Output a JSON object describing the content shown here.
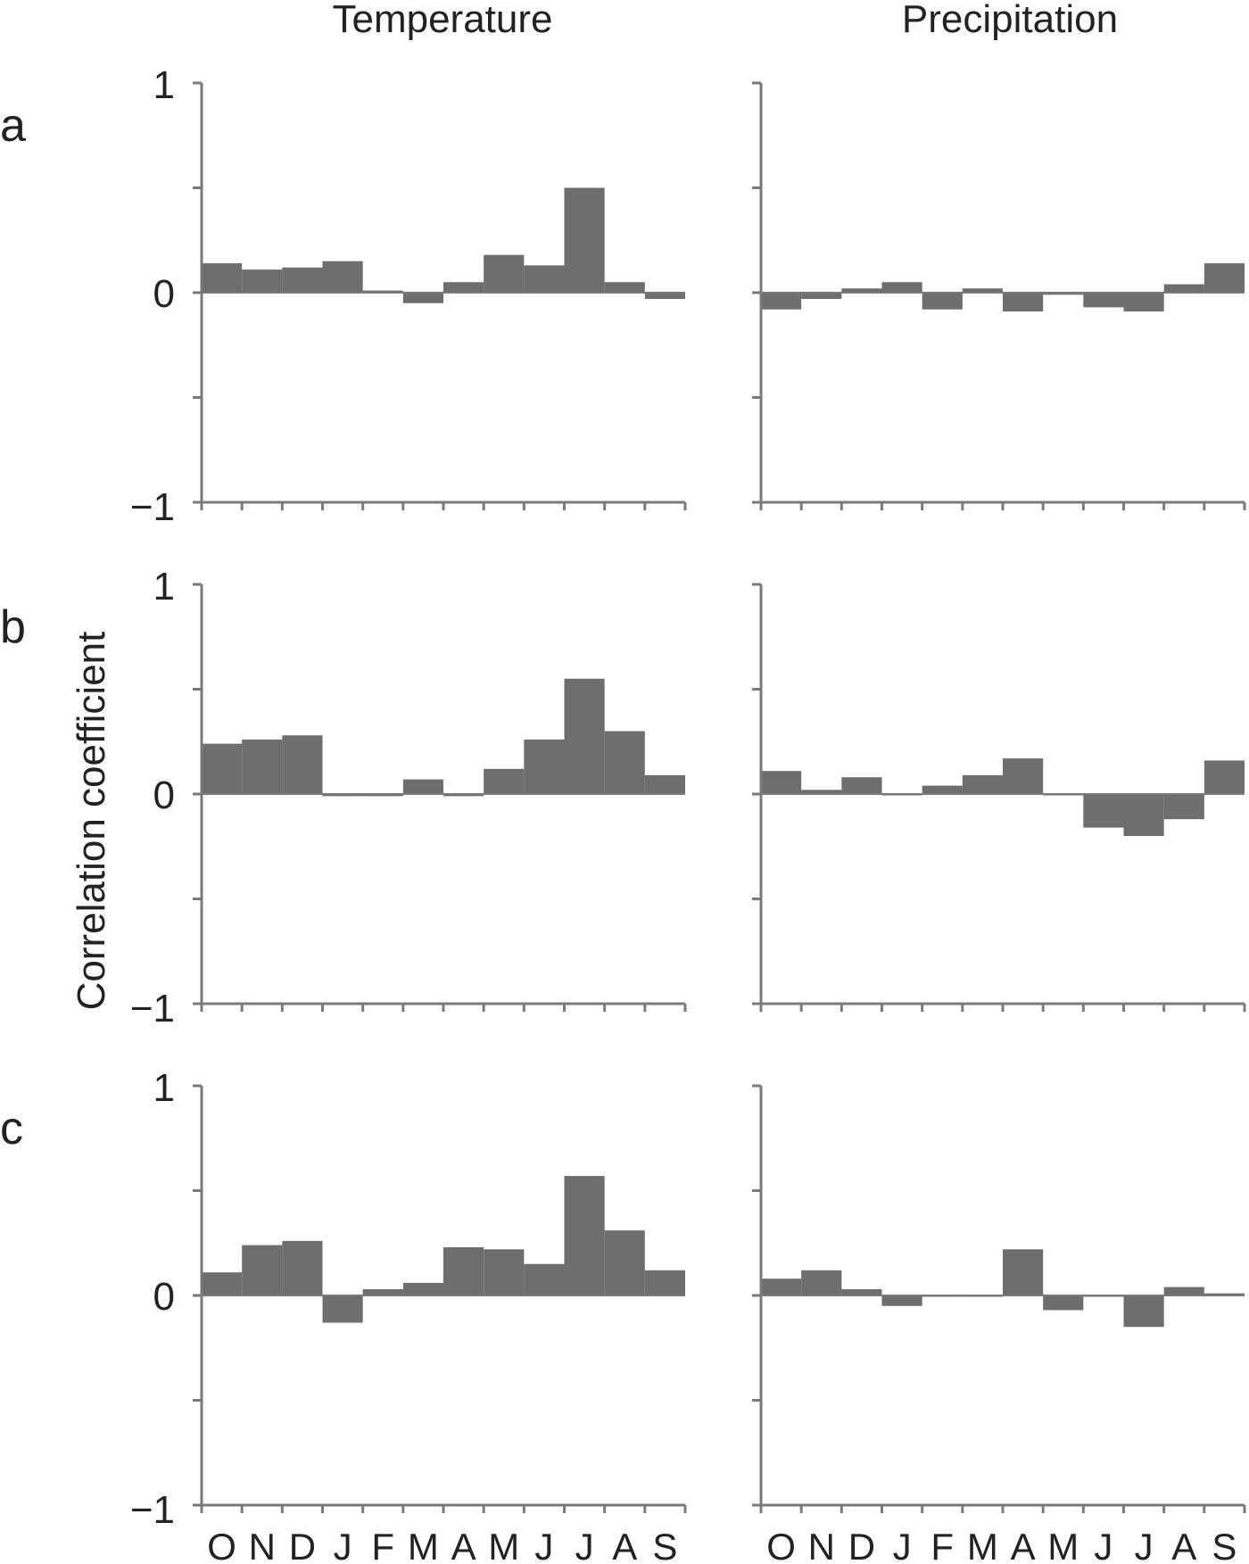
{
  "figure": {
    "column_titles": [
      "Temperature",
      "Precipitation"
    ],
    "panel_letters": [
      "a",
      "b",
      "c"
    ],
    "ylabel": "Correlation coefficient",
    "colors": {
      "bar": "#6e6e6e",
      "axis": "#7a7a7a",
      "text": "#222222"
    }
  },
  "chart_data": [
    {
      "type": "bar",
      "panel": "a",
      "column": "Temperature",
      "categories": [
        "O",
        "N",
        "D",
        "J",
        "F",
        "M",
        "A",
        "M",
        "J",
        "J",
        "A",
        "S"
      ],
      "values": [
        0.14,
        0.11,
        0.12,
        0.15,
        0.01,
        -0.05,
        0.05,
        0.18,
        0.13,
        0.5,
        0.05,
        -0.03
      ],
      "ylim": [
        -1,
        1
      ],
      "yticks": [
        "1",
        "0",
        "−1"
      ]
    },
    {
      "type": "bar",
      "panel": "a",
      "column": "Precipitation",
      "categories": [
        "O",
        "N",
        "D",
        "J",
        "F",
        "M",
        "A",
        "M",
        "J",
        "J",
        "A",
        "S"
      ],
      "values": [
        -0.08,
        -0.03,
        0.02,
        0.05,
        -0.08,
        0.02,
        -0.09,
        -0.01,
        -0.07,
        -0.09,
        0.04,
        0.14
      ],
      "ylim": [
        -1,
        1
      ],
      "yticks": []
    },
    {
      "type": "bar",
      "panel": "b",
      "column": "Temperature",
      "categories": [
        "O",
        "N",
        "D",
        "J",
        "F",
        "M",
        "A",
        "M",
        "J",
        "J",
        "A",
        "S"
      ],
      "values": [
        0.24,
        0.26,
        0.28,
        -0.01,
        -0.01,
        0.07,
        -0.01,
        0.12,
        0.26,
        0.55,
        0.3,
        0.09
      ],
      "ylim": [
        -1,
        1
      ],
      "yticks": [
        "1",
        "0",
        "−1"
      ]
    },
    {
      "type": "bar",
      "panel": "b",
      "column": "Precipitation",
      "categories": [
        "O",
        "N",
        "D",
        "J",
        "F",
        "M",
        "A",
        "M",
        "J",
        "J",
        "A",
        "S"
      ],
      "values": [
        0.11,
        0.02,
        0.08,
        0.0,
        0.04,
        0.09,
        0.17,
        0.0,
        -0.16,
        -0.2,
        -0.12,
        0.16
      ],
      "ylim": [
        -1,
        1
      ],
      "yticks": []
    },
    {
      "type": "bar",
      "panel": "c",
      "column": "Temperature",
      "categories": [
        "O",
        "N",
        "D",
        "J",
        "F",
        "M",
        "A",
        "M",
        "J",
        "J",
        "A",
        "S"
      ],
      "values": [
        0.11,
        0.24,
        0.26,
        -0.13,
        0.03,
        0.06,
        0.23,
        0.22,
        0.15,
        0.57,
        0.31,
        0.12
      ],
      "ylim": [
        -1,
        1
      ],
      "yticks": [
        "1",
        "0",
        "−1"
      ],
      "month_labels": [
        "O",
        "N",
        "D",
        "J",
        "F",
        "M",
        "A",
        "M",
        "J",
        "J",
        "A",
        "S"
      ]
    },
    {
      "type": "bar",
      "panel": "c",
      "column": "Precipitation",
      "categories": [
        "O",
        "N",
        "D",
        "J",
        "F",
        "M",
        "A",
        "M",
        "J",
        "J",
        "A",
        "S"
      ],
      "values": [
        0.08,
        0.12,
        0.03,
        -0.05,
        0.0,
        0.0,
        0.22,
        -0.07,
        0.0,
        -0.15,
        0.04,
        0.01
      ],
      "ylim": [
        -1,
        1
      ],
      "yticks": [],
      "month_labels": [
        "O",
        "N",
        "D",
        "J",
        "F",
        "M",
        "A",
        "M",
        "J",
        "J",
        "A",
        "S"
      ]
    }
  ]
}
